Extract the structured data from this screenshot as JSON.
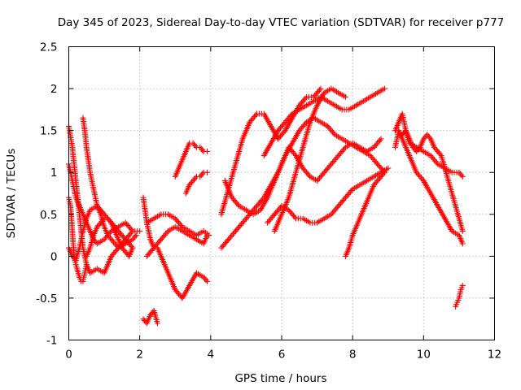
{
  "chart_data": {
    "type": "scatter",
    "title": "Day 345 of 2023, Sidereal Day-to-day VTEC variation (SDTVAR) for receiver p777",
    "xlabel": "GPS time / hours",
    "ylabel": "SDTVAR / TECUs",
    "xlim": [
      0,
      12
    ],
    "ylim": [
      -1,
      2.5
    ],
    "xticks": [
      0,
      2,
      4,
      6,
      8,
      10,
      12
    ],
    "yticks": [
      -1,
      -0.5,
      0,
      0.5,
      1,
      1.5,
      2,
      2.5
    ],
    "xtick_labels": [
      "0",
      "2",
      "4",
      "6",
      "8",
      "10",
      "12"
    ],
    "ytick_labels": [
      "-1",
      "-0.5",
      "0",
      "0.5",
      "1",
      "1.5",
      "2",
      "2.5"
    ],
    "grid": true,
    "marker": "+",
    "color": "#ff0000",
    "series": [
      {
        "name": "s1",
        "x": [
          0.0,
          0.1,
          0.2,
          0.3,
          0.4,
          0.5,
          0.6,
          0.8,
          1.0,
          1.2,
          1.4,
          1.6,
          1.8,
          2.0
        ],
        "y": [
          1.55,
          1.3,
          0.9,
          0.5,
          0.1,
          -0.1,
          -0.2,
          -0.15,
          -0.2,
          0.0,
          0.1,
          0.2,
          0.3,
          0.3
        ]
      },
      {
        "name": "s2",
        "x": [
          0.0,
          0.05,
          0.1,
          0.15,
          0.2,
          0.3,
          0.35,
          0.4,
          0.45,
          0.5
        ],
        "y": [
          0.7,
          0.6,
          0.3,
          0.0,
          -0.1,
          -0.25,
          -0.3,
          -0.3,
          -0.2,
          -0.1
        ]
      },
      {
        "name": "s3",
        "x": [
          0.0,
          0.1,
          0.2,
          0.3,
          0.4,
          0.5,
          0.6,
          0.8,
          1.0,
          1.2,
          1.4,
          1.6,
          1.8
        ],
        "y": [
          0.1,
          0.0,
          -0.05,
          0.1,
          0.3,
          0.45,
          0.55,
          0.6,
          0.5,
          0.4,
          0.3,
          0.2,
          0.1
        ]
      },
      {
        "name": "s4",
        "x": [
          0.4,
          0.45,
          0.5,
          0.6,
          0.7,
          0.8,
          0.9,
          1.0,
          1.1,
          1.2,
          1.4,
          1.6,
          1.8,
          1.9
        ],
        "y": [
          1.65,
          1.5,
          1.3,
          1.0,
          0.8,
          0.6,
          0.5,
          0.35,
          0.25,
          0.2,
          0.1,
          0.15,
          0.2,
          0.25
        ]
      },
      {
        "name": "s5",
        "x": [
          0.0,
          0.1,
          0.2,
          0.3,
          0.4,
          0.5,
          0.6,
          0.7,
          0.8,
          1.0,
          1.2,
          1.4,
          1.6,
          1.8
        ],
        "y": [
          1.1,
          0.9,
          0.7,
          0.6,
          0.5,
          0.4,
          0.3,
          0.2,
          0.15,
          0.2,
          0.3,
          0.35,
          0.4,
          0.3
        ]
      },
      {
        "name": "s6",
        "x": [
          0.5,
          0.6,
          0.7,
          0.8,
          0.9,
          1.0,
          1.1,
          1.2,
          1.3,
          1.4,
          1.5,
          1.6,
          1.7,
          1.8
        ],
        "y": [
          0.0,
          0.1,
          0.25,
          0.35,
          0.4,
          0.45,
          0.45,
          0.4,
          0.3,
          0.2,
          0.1,
          0.05,
          0.0,
          0.1
        ]
      },
      {
        "name": "s7",
        "x": [
          2.1,
          2.2,
          2.3,
          2.4,
          2.5,
          2.6,
          2.7,
          2.8,
          2.9,
          3.0,
          3.2,
          3.4,
          3.6,
          3.8,
          3.9
        ],
        "y": [
          0.7,
          0.4,
          0.2,
          0.1,
          0.1,
          0.0,
          -0.1,
          -0.2,
          -0.3,
          -0.4,
          -0.5,
          -0.35,
          -0.2,
          -0.25,
          -0.3
        ]
      },
      {
        "name": "s8",
        "x": [
          2.1,
          2.2,
          2.3,
          2.4,
          2.5
        ],
        "y": [
          -0.75,
          -0.8,
          -0.7,
          -0.65,
          -0.8
        ]
      },
      {
        "name": "s9",
        "x": [
          2.2,
          2.4,
          2.6,
          2.8,
          3.0,
          3.2,
          3.4,
          3.6,
          3.8,
          3.9
        ],
        "y": [
          0.0,
          0.1,
          0.2,
          0.3,
          0.35,
          0.3,
          0.25,
          0.2,
          0.15,
          0.25
        ]
      },
      {
        "name": "s10",
        "x": [
          2.2,
          2.4,
          2.6,
          2.8,
          3.0,
          3.2,
          3.4,
          3.6,
          3.8,
          3.95
        ],
        "y": [
          0.4,
          0.45,
          0.5,
          0.5,
          0.45,
          0.35,
          0.3,
          0.25,
          0.3,
          0.25
        ]
      },
      {
        "name": "s11",
        "x": [
          3.0,
          3.1,
          3.2,
          3.3,
          3.4,
          3.5,
          3.6,
          3.7,
          3.8,
          3.9
        ],
        "y": [
          0.95,
          1.05,
          1.15,
          1.25,
          1.35,
          1.35,
          1.3,
          1.3,
          1.25,
          1.25
        ]
      },
      {
        "name": "s12",
        "x": [
          3.3,
          3.4,
          3.5,
          3.6,
          3.7,
          3.8,
          3.9
        ],
        "y": [
          0.75,
          0.85,
          0.9,
          0.95,
          0.95,
          1.0,
          1.0
        ]
      },
      {
        "name": "s13",
        "x": [
          4.3,
          4.5,
          4.7,
          4.9,
          5.1,
          5.3,
          5.5,
          5.7,
          5.9,
          6.1,
          6.3,
          6.5,
          6.7,
          6.9,
          7.1
        ],
        "y": [
          0.5,
          0.8,
          1.1,
          1.4,
          1.6,
          1.7,
          1.7,
          1.55,
          1.4,
          1.5,
          1.65,
          1.8,
          1.9,
          1.9,
          2.0
        ]
      },
      {
        "name": "s14",
        "x": [
          4.3,
          4.5,
          4.7,
          4.9,
          5.1,
          5.3,
          5.5,
          5.7,
          5.9,
          6.1,
          6.3,
          6.5,
          6.7,
          6.9,
          7.1,
          7.3,
          7.5,
          7.7,
          7.9,
          8.1,
          8.3,
          8.5,
          8.7,
          8.9
        ],
        "y": [
          0.1,
          0.2,
          0.3,
          0.4,
          0.5,
          0.6,
          0.7,
          0.85,
          1.0,
          1.2,
          1.35,
          1.5,
          1.6,
          1.65,
          1.6,
          1.55,
          1.45,
          1.4,
          1.35,
          1.3,
          1.25,
          1.2,
          1.1,
          1.0
        ]
      },
      {
        "name": "s15",
        "x": [
          4.4,
          4.6,
          4.8,
          5.0,
          5.2,
          5.4,
          5.6,
          5.8,
          6.0,
          6.2,
          6.4,
          6.6,
          6.8,
          7.0,
          7.2,
          7.4,
          7.6,
          7.8,
          8.0,
          8.2,
          8.4,
          8.6,
          8.8
        ],
        "y": [
          0.9,
          0.7,
          0.6,
          0.55,
          0.5,
          0.55,
          0.7,
          0.9,
          1.1,
          1.3,
          1.2,
          1.05,
          0.95,
          0.9,
          1.0,
          1.1,
          1.2,
          1.3,
          1.35,
          1.3,
          1.25,
          1.3,
          1.4
        ]
      },
      {
        "name": "s16",
        "x": [
          5.5,
          5.7,
          5.9,
          6.1,
          6.3,
          6.5,
          6.7,
          6.9,
          7.1,
          7.3,
          7.5,
          7.7,
          7.9,
          8.1,
          8.3,
          8.5,
          8.7,
          8.9
        ],
        "y": [
          1.2,
          1.35,
          1.5,
          1.6,
          1.7,
          1.75,
          1.8,
          1.85,
          1.9,
          1.85,
          1.8,
          1.75,
          1.75,
          1.8,
          1.85,
          1.9,
          1.95,
          2.0
        ]
      },
      {
        "name": "s17",
        "x": [
          5.6,
          5.8,
          6.0,
          6.2,
          6.4,
          6.6,
          6.8,
          7.0,
          7.2,
          7.4,
          7.6,
          7.8,
          8.0,
          8.2,
          8.4,
          8.6,
          8.8,
          9.0
        ],
        "y": [
          0.4,
          0.5,
          0.6,
          0.55,
          0.45,
          0.45,
          0.4,
          0.4,
          0.45,
          0.5,
          0.6,
          0.7,
          0.8,
          0.85,
          0.9,
          0.95,
          1.0,
          1.05
        ]
      },
      {
        "name": "s18",
        "x": [
          7.8,
          7.9,
          8.0,
          8.1,
          8.2,
          8.3,
          8.4,
          8.5,
          8.6,
          8.7,
          8.8,
          8.9
        ],
        "y": [
          0.0,
          0.1,
          0.25,
          0.35,
          0.45,
          0.55,
          0.65,
          0.75,
          0.85,
          0.9,
          0.95,
          1.0
        ]
      },
      {
        "name": "s19",
        "x": [
          5.8,
          6.0,
          6.2,
          6.4,
          6.6,
          6.8,
          7.0,
          7.2,
          7.4,
          7.6,
          7.8
        ],
        "y": [
          0.3,
          0.5,
          0.7,
          1.0,
          1.3,
          1.6,
          1.8,
          1.95,
          2.0,
          1.95,
          1.9
        ]
      },
      {
        "name": "s20",
        "x": [
          9.2,
          9.3,
          9.4,
          9.5,
          9.6,
          9.8,
          10.0,
          10.2,
          10.4,
          10.6,
          10.8,
          11.0,
          11.1
        ],
        "y": [
          1.5,
          1.6,
          1.7,
          1.5,
          1.35,
          1.3,
          1.25,
          1.2,
          1.1,
          1.05,
          1.0,
          1.0,
          0.95
        ]
      },
      {
        "name": "s21",
        "x": [
          9.2,
          9.3,
          9.4,
          9.5,
          9.6,
          9.7,
          9.8,
          10.0,
          10.2,
          10.4,
          10.6,
          10.8,
          11.0,
          11.1
        ],
        "y": [
          1.3,
          1.5,
          1.4,
          1.3,
          1.2,
          1.1,
          1.0,
          0.9,
          0.75,
          0.6,
          0.45,
          0.3,
          0.25,
          0.15
        ]
      },
      {
        "name": "s22",
        "x": [
          9.4,
          9.5,
          9.6,
          9.7,
          9.8,
          9.9,
          10.0,
          10.1,
          10.2,
          10.3,
          10.5,
          10.7,
          10.9,
          11.1
        ],
        "y": [
          1.45,
          1.5,
          1.4,
          1.3,
          1.25,
          1.3,
          1.4,
          1.45,
          1.4,
          1.3,
          1.2,
          0.9,
          0.6,
          0.3
        ]
      },
      {
        "name": "s23",
        "x": [
          10.9,
          10.95,
          11.0,
          11.05,
          11.1
        ],
        "y": [
          -0.6,
          -0.55,
          -0.5,
          -0.4,
          -0.35
        ]
      }
    ]
  }
}
